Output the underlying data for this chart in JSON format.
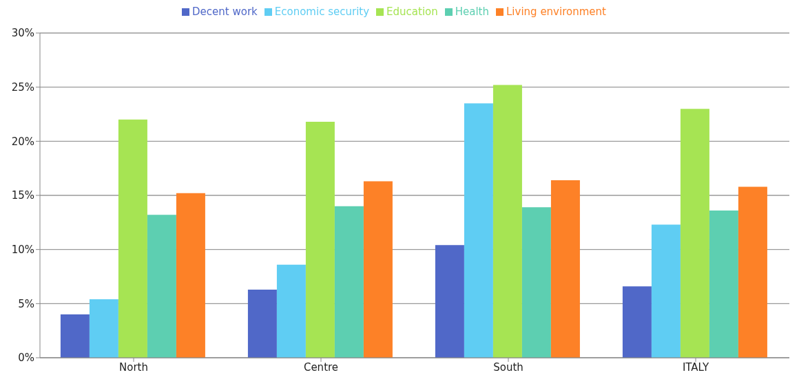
{
  "chart_data": {
    "type": "bar",
    "categories": [
      "North",
      "Centre",
      "South",
      "ITALY"
    ],
    "series": [
      {
        "name": "Decent work",
        "color": "#5068c8",
        "values": [
          4.0,
          6.3,
          10.4,
          6.6
        ]
      },
      {
        "name": "Economic security",
        "color": "#5fcdf3",
        "values": [
          5.4,
          8.6,
          23.5,
          12.3
        ]
      },
      {
        "name": "Education",
        "color": "#a6e453",
        "values": [
          22.0,
          21.8,
          25.2,
          23.0
        ]
      },
      {
        "name": "Health",
        "color": "#5dcfb1",
        "values": [
          13.2,
          14.0,
          13.9,
          13.6
        ]
      },
      {
        "name": "Living environment",
        "color": "#fd8127",
        "values": [
          15.2,
          16.3,
          16.4,
          15.8
        ]
      }
    ],
    "ylim": [
      0,
      30
    ],
    "yticks": [
      {
        "value": 0,
        "label": "0%"
      },
      {
        "value": 5,
        "label": "5%"
      },
      {
        "value": 10,
        "label": "10%"
      },
      {
        "value": 15,
        "label": "15%"
      },
      {
        "value": 20,
        "label": "20%"
      },
      {
        "value": 25,
        "label": "25%"
      },
      {
        "value": 30,
        "label": "30%"
      }
    ],
    "grid": "y",
    "legend": "top"
  }
}
